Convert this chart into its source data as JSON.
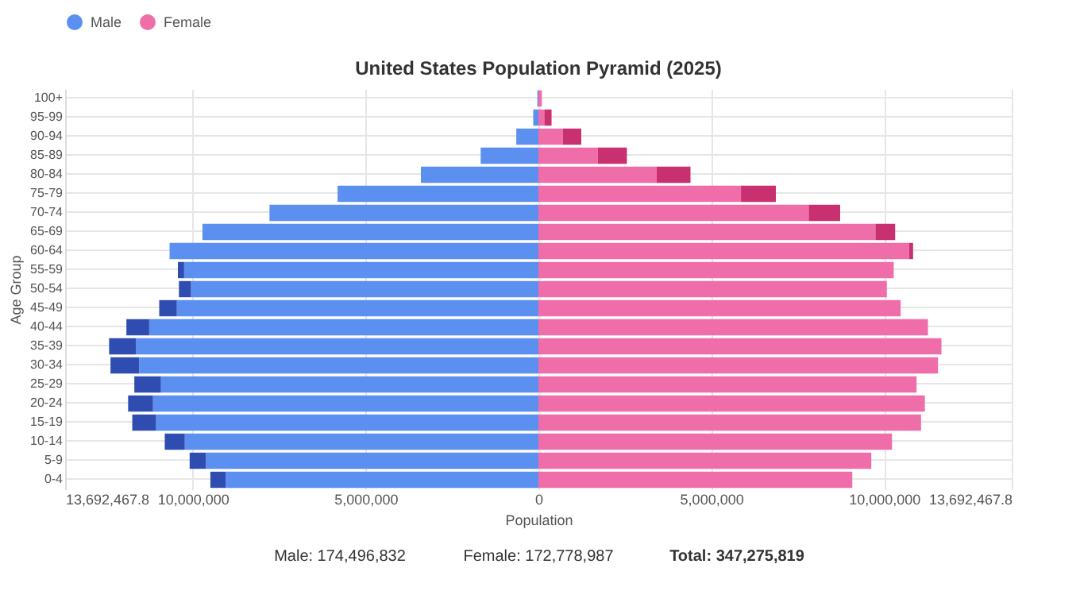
{
  "chart_data": {
    "type": "bar",
    "orientation": "horizontal",
    "stacked": true,
    "title": "United States Population Pyramid (2025)",
    "xlabel": "Population",
    "ylabel": "Age Group",
    "categories": [
      "100+",
      "95-99",
      "90-94",
      "85-89",
      "80-84",
      "75-79",
      "70-74",
      "65-69",
      "60-64",
      "55-59",
      "50-54",
      "45-49",
      "40-44",
      "35-39",
      "30-34",
      "25-29",
      "20-24",
      "15-19",
      "10-14",
      "5-9",
      "0-4"
    ],
    "series": [
      {
        "name": "Male",
        "color": "#5b8ff0",
        "values": [
          -30000,
          -150000,
          -640000,
          -1670000,
          -3400000,
          -5810000,
          -7780000,
          -9720000,
          -10670000,
          -10250000,
          -10050000,
          -10460000,
          -11260000,
          -11640000,
          -11550000,
          -10920000,
          -11150000,
          -11060000,
          -10230000,
          -9620000,
          -9050000
        ]
      },
      {
        "color": "#2f4db0",
        "values": [
          0,
          0,
          0,
          0,
          0,
          0,
          0,
          0,
          0,
          -180000,
          -350000,
          -510000,
          -660000,
          -780000,
          -830000,
          -770000,
          -720000,
          -690000,
          -580000,
          -470000,
          -440000
        ]
      },
      {
        "name": "Female",
        "color": "#ef6eaa",
        "values": [
          100000,
          170000,
          710000,
          1720000,
          3420000,
          5860000,
          7820000,
          9750000,
          10720000,
          10280000,
          10080000,
          10480000,
          11270000,
          11660000,
          11560000,
          10940000,
          11180000,
          11070000,
          10230000,
          9630000,
          9080000
        ]
      },
      {
        "color": "#c9306f",
        "values": [
          0,
          210000,
          530000,
          840000,
          980000,
          1010000,
          910000,
          570000,
          120000,
          0,
          0,
          0,
          0,
          0,
          0,
          0,
          0,
          0,
          0,
          0,
          0
        ]
      }
    ],
    "xlim": [
      -13692467.8,
      13692467.8
    ],
    "xticks": [
      {
        "value": -13692467.8,
        "label": "13,692,467.8"
      },
      {
        "value": -10000000,
        "label": "10,000,000"
      },
      {
        "value": -5000000,
        "label": "5,000,000"
      },
      0,
      {
        "value": 5000000,
        "label": "5,000,000"
      },
      {
        "value": 10000000,
        "label": "10,000,000"
      },
      {
        "value": 13692467.8,
        "label": "13,692,467.8"
      }
    ],
    "grid": true,
    "legend": "top",
    "annotations": [
      "Male: 174,496,832",
      "Female: 172,778,987",
      "Total: 347,275,819"
    ]
  }
}
